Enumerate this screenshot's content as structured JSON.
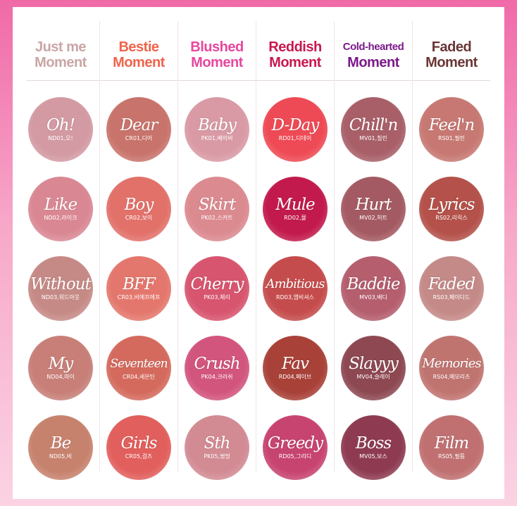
{
  "columns": [
    {
      "id": "nd",
      "title_line1": "Just me",
      "title_line2": "Moment",
      "color": "#c9a6a4",
      "small": false,
      "swatches": [
        {
          "name": "Oh!",
          "code": "ND01,오!",
          "color": "#d39aa3"
        },
        {
          "name": "Like",
          "code": "ND02,라이크",
          "color": "#d98893"
        },
        {
          "name": "Without",
          "code": "ND03,위드아웃",
          "color": "#c68a86"
        },
        {
          "name": "My",
          "code": "ND04,마이",
          "color": "#c77f78"
        },
        {
          "name": "Be",
          "code": "ND05,비",
          "color": "#c7826e"
        }
      ]
    },
    {
      "id": "cr",
      "title_line1": "Bestie",
      "title_line2": "Moment",
      "color": "#f0634b",
      "small": false,
      "swatches": [
        {
          "name": "Dear",
          "code": "CR01,디어",
          "color": "#c8736b"
        },
        {
          "name": "Boy",
          "code": "CR02,보이",
          "color": "#e2716a"
        },
        {
          "name": "BFF",
          "code": "CR03,비에프에프",
          "color": "#e4776d"
        },
        {
          "name": "Seventeen",
          "code": "CR04,세븐틴",
          "color": "#d46a5d"
        },
        {
          "name": "Girls",
          "code": "CR05,걸즈",
          "color": "#e15f5c"
        }
      ]
    },
    {
      "id": "pk",
      "title_line1": "Blushed",
      "title_line2": "Moment",
      "color": "#e8479f",
      "small": false,
      "swatches": [
        {
          "name": "Baby",
          "code": "PK01,베이비",
          "color": "#d99aa5"
        },
        {
          "name": "Skirt",
          "code": "PK02,스커트",
          "color": "#db8a90"
        },
        {
          "name": "Cherry",
          "code": "PK03,체리",
          "color": "#d7556f"
        },
        {
          "name": "Crush",
          "code": "PK04,크러쉬",
          "color": "#d2557d"
        },
        {
          "name": "Sth",
          "code": "PK05,썸띵",
          "color": "#d28a93"
        }
      ]
    },
    {
      "id": "rd",
      "title_line1": "Reddish",
      "title_line2": "Moment",
      "color": "#c8184f",
      "small": false,
      "swatches": [
        {
          "name": "D-Day",
          "code": "RD01,디데이",
          "color": "#ee4a55"
        },
        {
          "name": "Mule",
          "code": "RD02,뮬",
          "color": "#c21a4c"
        },
        {
          "name": "Ambitious",
          "code": "RD03,엠비셔스",
          "color": "#c54c4d"
        },
        {
          "name": "Fav",
          "code": "RD04,페이브",
          "color": "#a84138"
        },
        {
          "name": "Greedy",
          "code": "RD05,그리디",
          "color": "#c74470"
        }
      ]
    },
    {
      "id": "mv",
      "title_line1": "Cold-hearted",
      "title_line2": "Moment",
      "color": "#7b1a8a",
      "small": true,
      "swatches": [
        {
          "name": "Chill'n",
          "code": "MV01,칠린",
          "color": "#a85f68"
        },
        {
          "name": "Hurt",
          "code": "MV02,허트",
          "color": "#a45a62"
        },
        {
          "name": "Baddie",
          "code": "MV03,배디",
          "color": "#b45e6e"
        },
        {
          "name": "Slayyy",
          "code": "MV04,슬레이",
          "color": "#8d4852"
        },
        {
          "name": "Boss",
          "code": "MV05,보스",
          "color": "#8e3b52"
        }
      ]
    },
    {
      "id": "rs",
      "title_line1": "Faded",
      "title_line2": "Moment",
      "color": "#6a3535",
      "small": false,
      "swatches": [
        {
          "name": "Feel'n",
          "code": "RS01,필린",
          "color": "#c77872"
        },
        {
          "name": "Lyrics",
          "code": "RS02,리릭스",
          "color": "#b3514a"
        },
        {
          "name": "Faded",
          "code": "RS03,페이디드",
          "color": "#c48a88"
        },
        {
          "name": "Memories",
          "code": "RS04,메모리즈",
          "color": "#c07470"
        },
        {
          "name": "Film",
          "code": "RS05,필름",
          "color": "#c07071"
        }
      ]
    }
  ]
}
